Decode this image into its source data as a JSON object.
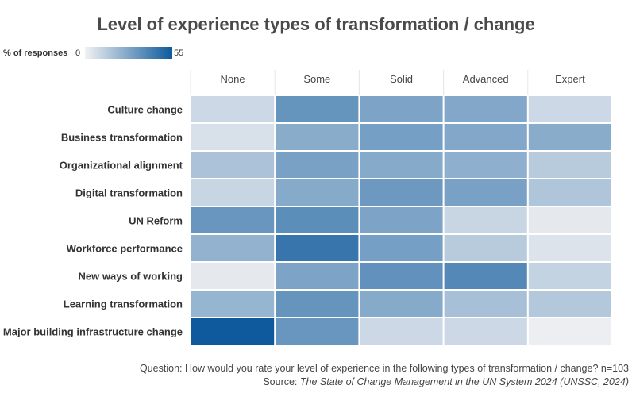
{
  "title": "Level of experience types of transformation / change",
  "legend": {
    "label": "% of responses",
    "min": "0",
    "max": "55",
    "color_low": "#f1f1f3",
    "color_high": "#0e5a9c"
  },
  "chart_data": {
    "type": "heatmap",
    "title": "Level of experience types of transformation / change",
    "columns": [
      "None",
      "Some",
      "Solid",
      "Advanced",
      "Expert"
    ],
    "rows": [
      "Culture change",
      "Business transformation",
      "Organizational alignment",
      "Digital transformation",
      "UN Reform",
      "Workforce performance",
      "New ways of working",
      "Learning transformation",
      "Major building infrastructure change"
    ],
    "values": [
      [
        9,
        34,
        28,
        27,
        9
      ],
      [
        6,
        25,
        30,
        27,
        25
      ],
      [
        17,
        29,
        26,
        24,
        14
      ],
      [
        10,
        26,
        32,
        29,
        16
      ],
      [
        33,
        36,
        28,
        10,
        3
      ],
      [
        23,
        45,
        30,
        14,
        5
      ],
      [
        3,
        28,
        35,
        38,
        11
      ],
      [
        22,
        34,
        26,
        18,
        15
      ],
      [
        55,
        33,
        9,
        9,
        1
      ]
    ],
    "color_scale": {
      "min": 0,
      "max": 55,
      "low": "#f1f1f3",
      "high": "#0e5a9c"
    }
  },
  "footer": {
    "question": "Question: How would you rate your level of experience in the following types of transformation / change? n=103",
    "source_prefix": "Source: ",
    "source_title": "The State of Change Management in the UN System 2024 (UNSSC, 2024)"
  }
}
